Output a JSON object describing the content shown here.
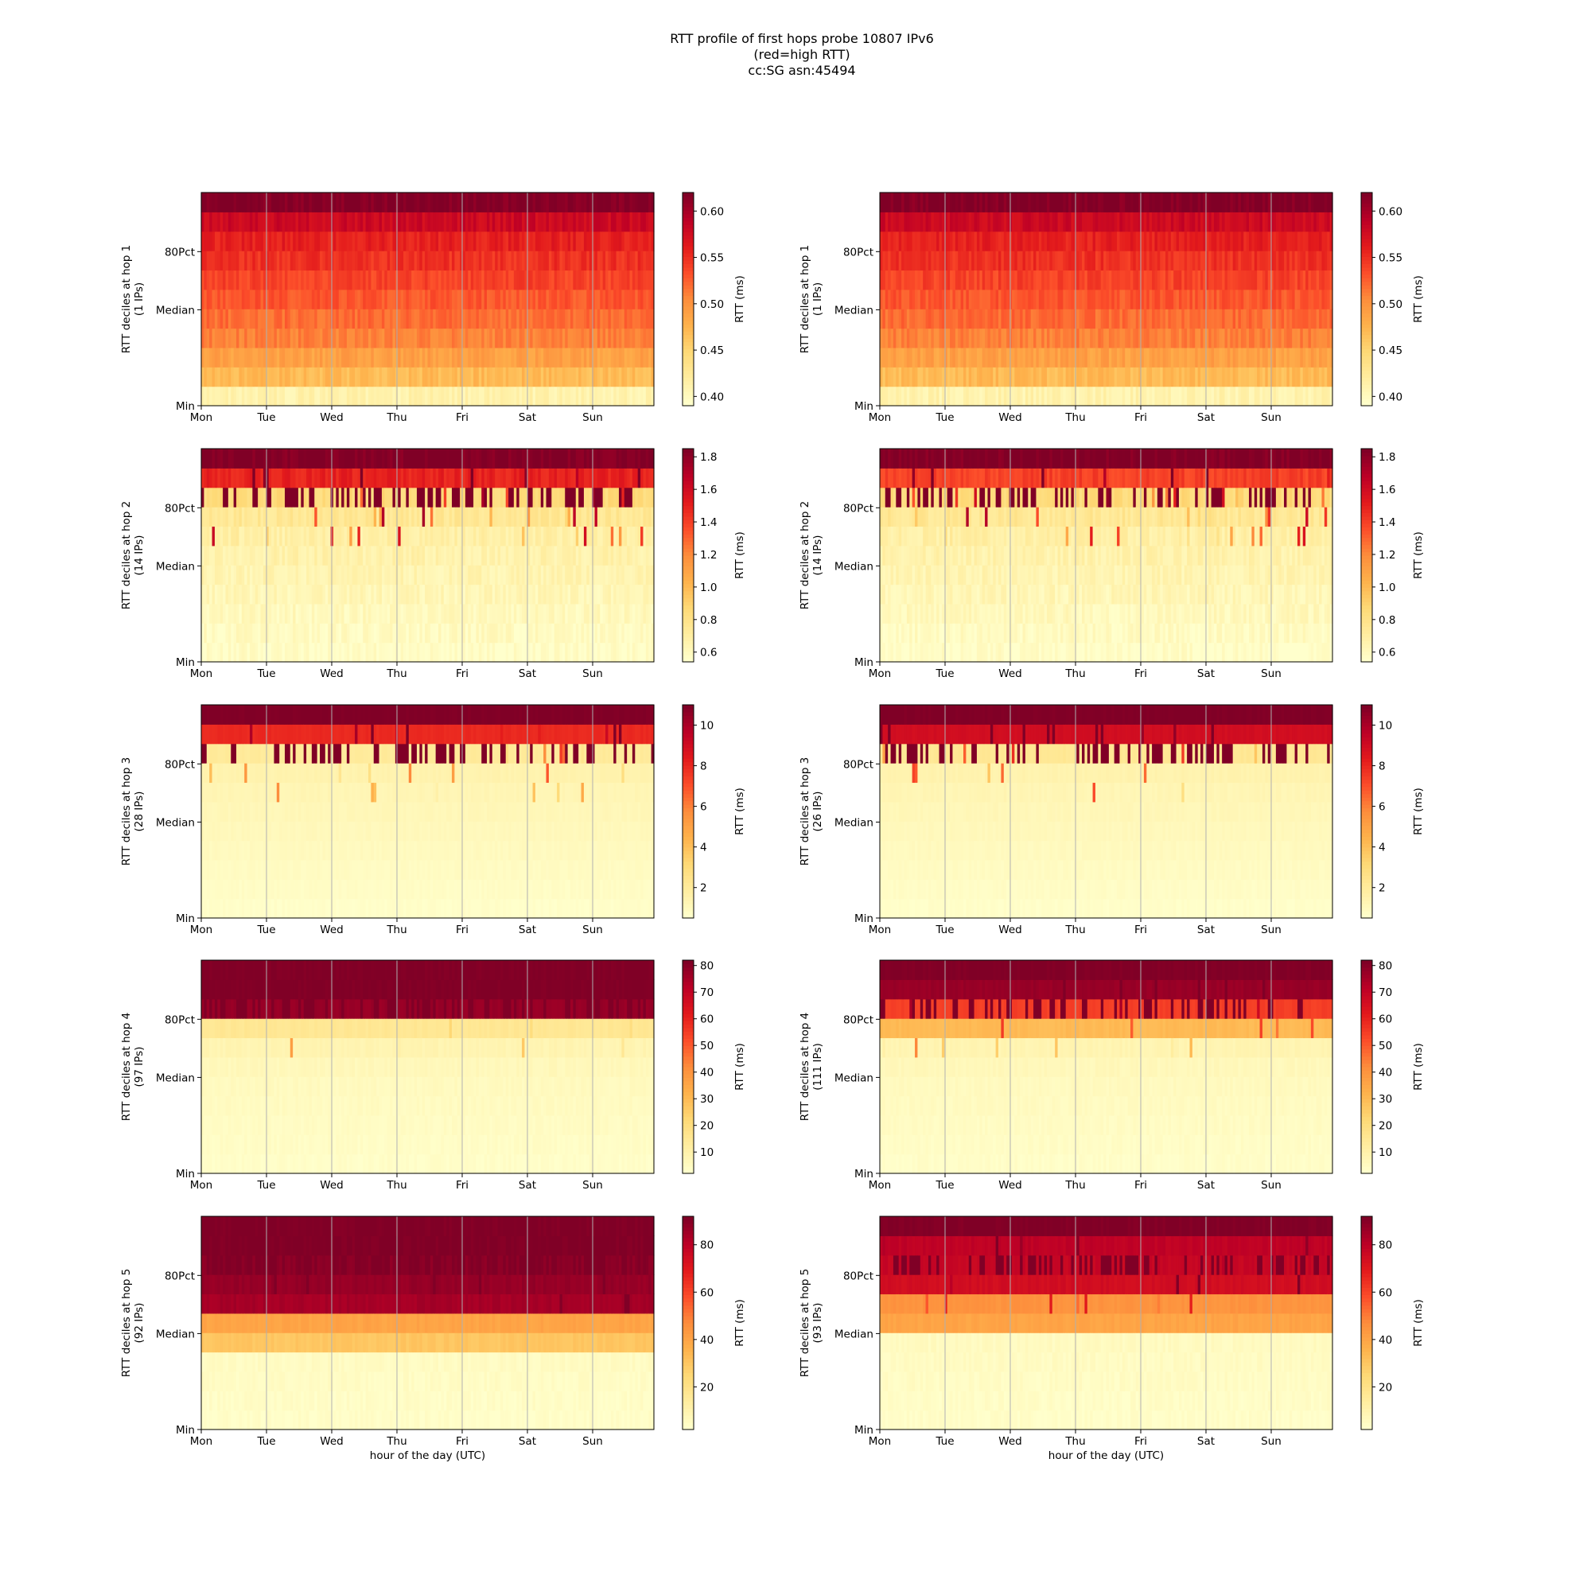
{
  "title": [
    "RTT profile of first hops probe 10807 IPv6",
    "(red=high RTT)",
    "cc:SG asn:45494"
  ],
  "xlabel": "hour of the day (UTC)",
  "colormap": {
    "name": "YlOrRd",
    "stops": [
      "#ffffcc",
      "#ffeda0",
      "#fed976",
      "#feb24c",
      "#fd8d3c",
      "#fc4e2a",
      "#e31a1c",
      "#bd0026",
      "#800026"
    ]
  },
  "gridline_color": "#b0b0b0",
  "chart_data": [
    {
      "type": "heatmap",
      "col": 0,
      "row": 0,
      "ylabel": "RTT deciles at hop 1",
      "ylabel_sub": "(1 IPs)",
      "cbar_label": "RTT (ms)",
      "cbar_ticks": [
        "0.40",
        "0.45",
        "0.50",
        "0.55",
        "0.60"
      ],
      "cbar_range": [
        0.39,
        0.62
      ],
      "x_ticks": [
        "Mon",
        "Tue",
        "Wed",
        "Thu",
        "Fri",
        "Sat",
        "Sun"
      ],
      "y_ticks": [
        "Min",
        "Median",
        "80Pct"
      ],
      "rows": 11,
      "cols": 168,
      "decile_profile": [
        0.41,
        0.47,
        0.49,
        0.51,
        0.52,
        0.53,
        0.54,
        0.55,
        0.56,
        0.58,
        0.62
      ],
      "noise": 0.01,
      "spike_prob": 0.0,
      "spike": 0
    },
    {
      "type": "heatmap",
      "col": 1,
      "row": 0,
      "ylabel": "RTT deciles at hop 1",
      "ylabel_sub": "(1 IPs)",
      "cbar_label": "RTT (ms)",
      "cbar_ticks": [
        "0.40",
        "0.45",
        "0.50",
        "0.55",
        "0.60"
      ],
      "cbar_range": [
        0.39,
        0.62
      ],
      "x_ticks": [
        "Mon",
        "Tue",
        "Wed",
        "Thu",
        "Fri",
        "Sat",
        "Sun"
      ],
      "y_ticks": [
        "Min",
        "Median",
        "80Pct"
      ],
      "rows": 11,
      "cols": 168,
      "decile_profile": [
        0.41,
        0.47,
        0.49,
        0.51,
        0.52,
        0.53,
        0.54,
        0.55,
        0.56,
        0.58,
        0.62
      ],
      "noise": 0.01,
      "spike_prob": 0.0,
      "spike": 0
    },
    {
      "type": "heatmap",
      "col": 0,
      "row": 1,
      "ylabel": "RTT deciles at hop 2",
      "ylabel_sub": "(14 IPs)",
      "cbar_label": "RTT (ms)",
      "cbar_ticks": [
        "0.6",
        "0.8",
        "1.0",
        "1.2",
        "1.4",
        "1.6",
        "1.8"
      ],
      "cbar_range": [
        0.54,
        1.85
      ],
      "x_ticks": [
        "Mon",
        "Tue",
        "Wed",
        "Thu",
        "Fri",
        "Sat",
        "Sun"
      ],
      "y_ticks": [
        "Min",
        "Median",
        "80Pct"
      ],
      "rows": 11,
      "cols": 168,
      "decile_profile": [
        0.56,
        0.58,
        0.6,
        0.62,
        0.64,
        0.66,
        0.68,
        0.75,
        0.85,
        1.5,
        1.85
      ],
      "noise": 0.05,
      "spike_prob": 0.06,
      "spike": 1.0
    },
    {
      "type": "heatmap",
      "col": 1,
      "row": 1,
      "ylabel": "RTT deciles at hop 2",
      "ylabel_sub": "(14 IPs)",
      "cbar_label": "RTT (ms)",
      "cbar_ticks": [
        "0.6",
        "0.8",
        "1.0",
        "1.2",
        "1.4",
        "1.6",
        "1.8"
      ],
      "cbar_range": [
        0.54,
        1.85
      ],
      "x_ticks": [
        "Mon",
        "Tue",
        "Wed",
        "Thu",
        "Fri",
        "Sat",
        "Sun"
      ],
      "y_ticks": [
        "Min",
        "Median",
        "80Pct"
      ],
      "rows": 11,
      "cols": 168,
      "decile_profile": [
        0.56,
        0.58,
        0.6,
        0.62,
        0.64,
        0.66,
        0.68,
        0.75,
        0.85,
        1.4,
        1.85
      ],
      "noise": 0.05,
      "spike_prob": 0.06,
      "spike": 1.0
    },
    {
      "type": "heatmap",
      "col": 0,
      "row": 2,
      "ylabel": "RTT deciles at hop 3",
      "ylabel_sub": "(28 IPs)",
      "cbar_label": "RTT (ms)",
      "cbar_ticks": [
        "2",
        "4",
        "6",
        "8",
        "10"
      ],
      "cbar_range": [
        0.5,
        11
      ],
      "x_ticks": [
        "Mon",
        "Tue",
        "Wed",
        "Thu",
        "Fri",
        "Sat",
        "Sun"
      ],
      "y_ticks": [
        "Min",
        "Median",
        "80Pct"
      ],
      "rows": 11,
      "cols": 168,
      "decile_profile": [
        0.6,
        0.7,
        0.8,
        0.9,
        1.0,
        1.1,
        1.2,
        1.4,
        2.0,
        8.0,
        11
      ],
      "noise": 0.1,
      "spike_prob": 0.05,
      "spike": 6
    },
    {
      "type": "heatmap",
      "col": 1,
      "row": 2,
      "ylabel": "RTT deciles at hop 3",
      "ylabel_sub": "(26 IPs)",
      "cbar_label": "RTT (ms)",
      "cbar_ticks": [
        "2",
        "4",
        "6",
        "8",
        "10"
      ],
      "cbar_range": [
        0.5,
        11
      ],
      "x_ticks": [
        "Mon",
        "Tue",
        "Wed",
        "Thu",
        "Fri",
        "Sat",
        "Sun"
      ],
      "y_ticks": [
        "Min",
        "Median",
        "80Pct"
      ],
      "rows": 11,
      "cols": 168,
      "decile_profile": [
        0.6,
        0.7,
        0.8,
        0.9,
        1.0,
        1.1,
        1.2,
        1.4,
        2.2,
        9.0,
        11
      ],
      "noise": 0.1,
      "spike_prob": 0.05,
      "spike": 6
    },
    {
      "type": "heatmap",
      "col": 0,
      "row": 3,
      "ylabel": "RTT deciles at hop 4",
      "ylabel_sub": "(97 IPs)",
      "cbar_label": "RTT (ms)",
      "cbar_ticks": [
        "10",
        "20",
        "30",
        "40",
        "50",
        "60",
        "70",
        "80"
      ],
      "cbar_range": [
        2,
        82
      ],
      "x_ticks": [
        "Mon",
        "Tue",
        "Wed",
        "Thu",
        "Fri",
        "Sat",
        "Sun"
      ],
      "y_ticks": [
        "Min",
        "Median",
        "80Pct"
      ],
      "rows": 11,
      "cols": 168,
      "decile_profile": [
        3,
        3.5,
        4,
        4.5,
        5,
        6,
        8,
        15,
        78,
        82,
        82
      ],
      "noise": 1.0,
      "spike_prob": 0.03,
      "spike": 35
    },
    {
      "type": "heatmap",
      "col": 1,
      "row": 3,
      "ylabel": "RTT deciles at hop 4",
      "ylabel_sub": "(111 IPs)",
      "cbar_label": "RTT (ms)",
      "cbar_ticks": [
        "10",
        "20",
        "30",
        "40",
        "50",
        "60",
        "70",
        "80"
      ],
      "cbar_range": [
        2,
        82
      ],
      "x_ticks": [
        "Mon",
        "Tue",
        "Wed",
        "Thu",
        "Fri",
        "Sat",
        "Sun"
      ],
      "y_ticks": [
        "Min",
        "Median",
        "80Pct"
      ],
      "rows": 11,
      "cols": 168,
      "decile_profile": [
        3,
        3.5,
        4,
        4.5,
        5,
        6,
        8,
        30,
        55,
        78,
        82
      ],
      "noise": 1.0,
      "spike_prob": 0.03,
      "spike": 35
    },
    {
      "type": "heatmap",
      "col": 0,
      "row": 4,
      "ylabel": "RTT deciles at hop 5",
      "ylabel_sub": "(92 IPs)",
      "cbar_label": "RTT (ms)",
      "cbar_ticks": [
        "20",
        "40",
        "60",
        "80"
      ],
      "cbar_range": [
        2,
        92
      ],
      "x_ticks": [
        "Mon",
        "Tue",
        "Wed",
        "Thu",
        "Fri",
        "Sat",
        "Sun"
      ],
      "y_ticks": [
        "Min",
        "Median",
        "80Pct"
      ],
      "rows": 11,
      "cols": 168,
      "decile_profile": [
        3,
        3.5,
        4,
        4.5,
        30,
        40,
        85,
        88,
        90,
        92,
        92
      ],
      "noise": 1.5,
      "spike_prob": 0.03,
      "spike": 30
    },
    {
      "type": "heatmap",
      "col": 1,
      "row": 4,
      "ylabel": "RTT deciles at hop 5",
      "ylabel_sub": "(93 IPs)",
      "cbar_label": "RTT (ms)",
      "cbar_ticks": [
        "20",
        "40",
        "60",
        "80"
      ],
      "cbar_range": [
        2,
        92
      ],
      "x_ticks": [
        "Mon",
        "Tue",
        "Wed",
        "Thu",
        "Fri",
        "Sat",
        "Sun"
      ],
      "y_ticks": [
        "Min",
        "Median",
        "80Pct"
      ],
      "rows": 11,
      "cols": 168,
      "decile_profile": [
        3,
        3.5,
        4,
        4.5,
        5,
        40,
        45,
        75,
        78,
        80,
        92
      ],
      "noise": 1.5,
      "spike_prob": 0.03,
      "spike": 30
    }
  ]
}
